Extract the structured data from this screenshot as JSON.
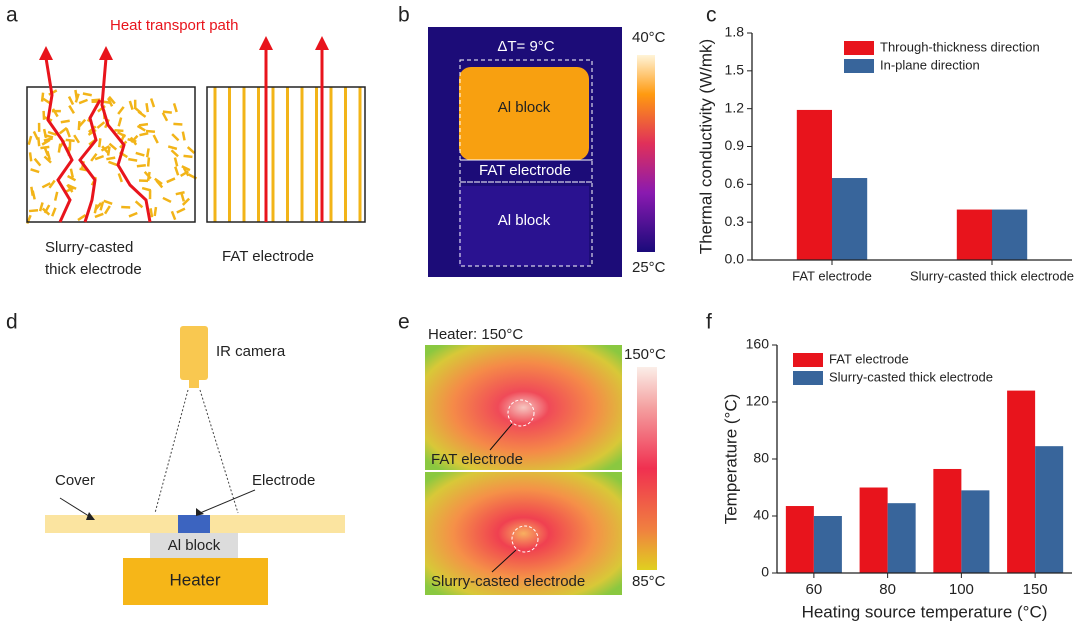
{
  "panels": {
    "a": {
      "label": "a",
      "title": "Heat transport path",
      "left_caption": [
        "Slurry-casted",
        "thick electrode"
      ],
      "right_caption": "FAT electrode"
    },
    "b": {
      "label": "b",
      "delta": "ΔT= 9°C",
      "scale_max": "40°C",
      "scale_min": "25°C",
      "top_block": "Al block",
      "middle": "FAT electrode",
      "bottom_block": "Al block"
    },
    "d": {
      "label": "d",
      "camera": "IR camera",
      "cover": "Cover",
      "electrode": "Electrode",
      "block": "Al block",
      "heater": "Heater"
    },
    "e": {
      "label": "e",
      "title": "Heater: 150°C",
      "scale_max": "150°C",
      "scale_min": "85°C",
      "top": "FAT electrode",
      "bottom": "Slurry-casted electrode"
    }
  },
  "chart_data": [
    {
      "type": "bar",
      "label": "c",
      "ylabel": "Thermal conductivity (W/mk)",
      "categories": [
        "FAT electrode",
        "Slurry-casted thick electrode"
      ],
      "series": [
        {
          "name": "Through-thickness direction",
          "color": "#e8141c",
          "values": [
            1.19,
            0.4
          ]
        },
        {
          "name": "In-plane direction",
          "color": "#38659b",
          "values": [
            0.65,
            0.4
          ]
        }
      ],
      "ylim": [
        0,
        1.8
      ],
      "yticks": [
        {
          "value": 0,
          "label": "0.0"
        },
        0.3,
        0.6,
        0.9,
        1.2,
        1.5,
        1.8
      ],
      "legend": "upper right"
    },
    {
      "type": "bar",
      "label": "f",
      "ylabel": "Temperature (°C)",
      "xlabel": "Heating source temperature (°C)",
      "categories": [
        "60",
        "80",
        "100",
        "150"
      ],
      "series": [
        {
          "name": "FAT electrode",
          "color": "#e8141c",
          "values": [
            47,
            60,
            73,
            128
          ]
        },
        {
          "name": "Slurry-casted thick electrode",
          "color": "#38659b",
          "values": [
            40,
            49,
            58,
            89
          ]
        }
      ],
      "ylim": [
        0,
        160
      ],
      "yticks": [
        0,
        40,
        80,
        120,
        160
      ],
      "legend": "upper left"
    }
  ]
}
